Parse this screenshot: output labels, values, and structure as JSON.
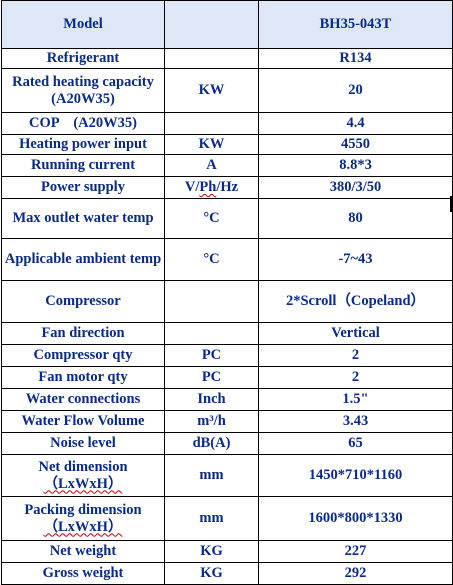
{
  "header": {
    "label": "Model",
    "value": "BH35-043T"
  },
  "rows": [
    {
      "key": "refrigerant",
      "label": "Refrigerant",
      "unit": "",
      "value": "R134"
    },
    {
      "key": "rated-heating-capacity",
      "label": "Rated heating capacity (A20W35)",
      "unit": "KW",
      "value": "20"
    },
    {
      "key": "cop",
      "label": "COP    (A20W35)",
      "unit": "",
      "value": "4.4"
    },
    {
      "key": "heating-power-input",
      "label": "Heating power input",
      "unit": "KW",
      "value": "4550"
    },
    {
      "key": "running-current",
      "label": "Running current",
      "unit": "A",
      "value": "8.8*3"
    },
    {
      "key": "power-supply",
      "label": "Power supply",
      "unit": "V/Ph/Hz",
      "value": "380/3/50"
    },
    {
      "key": "max-outlet-water-temp",
      "label": "Max outlet water temp",
      "unit": "°C",
      "value": "80"
    },
    {
      "key": "applicable-ambient-temp",
      "label": "Applicable ambient temp",
      "unit": "°C",
      "value": "-7~43"
    },
    {
      "key": "compressor",
      "label": "Compressor",
      "unit": "",
      "value": "2*Scroll（Copeland）"
    },
    {
      "key": "fan-direction",
      "label": "Fan direction",
      "unit": "",
      "value": "Vertical"
    },
    {
      "key": "compressor-qty",
      "label": "Compressor qty",
      "unit": "PC",
      "value": "2"
    },
    {
      "key": "fan-motor-qty",
      "label": "Fan motor qty",
      "unit": "PC",
      "value": "2"
    },
    {
      "key": "water-connections",
      "label": "Water connections",
      "unit": "Inch",
      "value": "1.5\""
    },
    {
      "key": "water-flow-volume",
      "label": "Water Flow Volume",
      "unit": "m³/h",
      "value": "3.43"
    },
    {
      "key": "noise-level",
      "label": "Noise level",
      "unit": "dB(A)",
      "value": "65"
    },
    {
      "key": "net-dimension",
      "label": "Net dimension",
      "label2": "（LxWxH）",
      "unit": "mm",
      "value": "1450*710*1160"
    },
    {
      "key": "packing-dimension",
      "label": "Packing dimension",
      "label2": "（LxWxH）",
      "unit": "mm",
      "value": "1600*800*1330"
    },
    {
      "key": "net-weight",
      "label": "Net weight",
      "unit": "KG",
      "value": "227"
    },
    {
      "key": "gross-weight",
      "label": "Gross weight",
      "unit": "KG",
      "value": "292"
    }
  ],
  "colors": {
    "text": "#0a2a8a",
    "header_bg": "#dde7f5",
    "grid": "#000000"
  }
}
